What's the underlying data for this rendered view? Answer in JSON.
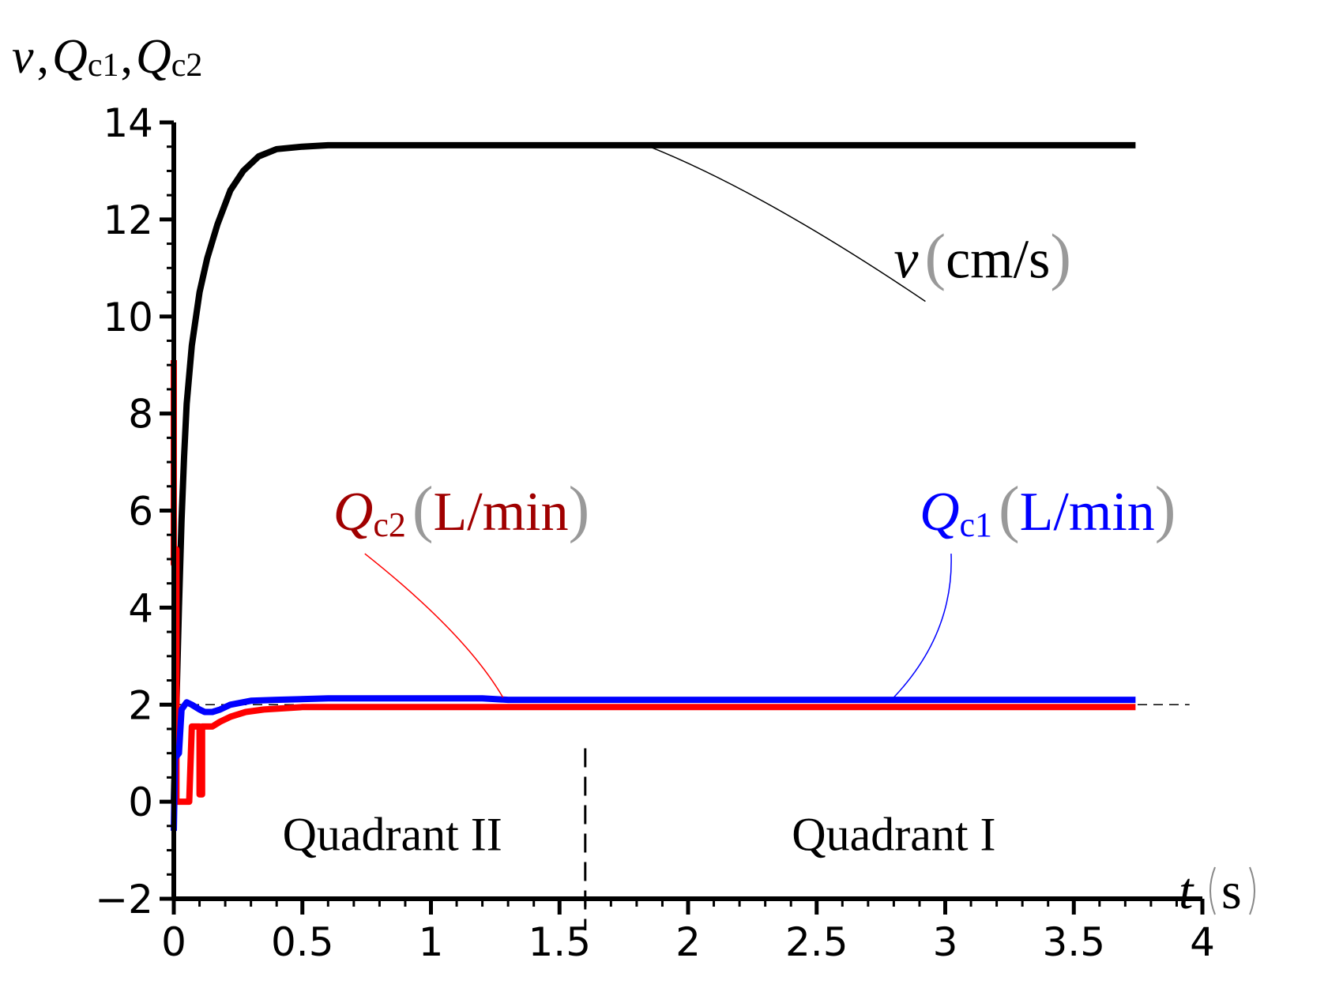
{
  "chart_data": {
    "type": "line",
    "xlim": [
      0,
      4
    ],
    "ylim": [
      -2,
      14
    ],
    "x_ticks": [
      "0",
      "0.5",
      "1",
      "1.5",
      "2",
      "2.5",
      "3",
      "3.5",
      "4"
    ],
    "y_ticks": [
      "-2",
      "0",
      "2",
      "4",
      "6",
      "8",
      "10",
      "12",
      "14"
    ],
    "y_axis_label": {
      "v": "v",
      "sep1": ",",
      "q1": "Q",
      "q1_sub": "c1",
      "sep2": ",",
      "q2": "Q",
      "q2_sub": "c2"
    },
    "x_axis_label": {
      "sym": "t",
      "unit": "s"
    },
    "reference_line_y": 2,
    "phase_boundary_x": 1.6,
    "region_labels": [
      {
        "text": "Quadrant II",
        "x": 0.85,
        "y": -1.0
      },
      {
        "text": "Quadrant I",
        "x": 2.8,
        "y": -1.0
      }
    ],
    "series": [
      {
        "label_sym": "v",
        "label_sub": "",
        "label_unit": "cm/s",
        "color": "#000000",
        "label_at": {
          "x": 2.8,
          "y": 10.8
        },
        "anchor": {
          "x": 1.85,
          "y": 13.5
        },
        "points": [
          [
            0,
            0
          ],
          [
            0.01,
            2
          ],
          [
            0.02,
            4
          ],
          [
            0.03,
            5.8
          ],
          [
            0.04,
            7.1
          ],
          [
            0.05,
            8.2
          ],
          [
            0.07,
            9.4
          ],
          [
            0.1,
            10.5
          ],
          [
            0.13,
            11.2
          ],
          [
            0.17,
            11.9
          ],
          [
            0.22,
            12.6
          ],
          [
            0.27,
            13.0
          ],
          [
            0.33,
            13.3
          ],
          [
            0.4,
            13.45
          ],
          [
            0.5,
            13.5
          ],
          [
            0.6,
            13.53
          ],
          [
            3.74,
            13.53
          ]
        ]
      },
      {
        "label_sym": "Q",
        "label_sub": "c2",
        "label_unit": "L/min",
        "color": "#ff0000",
        "label_color": "#a00000",
        "label_at": {
          "x": 0.62,
          "y": 5.6
        },
        "anchor": {
          "x": 1.28,
          "y": 2.15
        },
        "points": [
          [
            0,
            9.1
          ],
          [
            0,
            4.9
          ],
          [
            0.01,
            5.2
          ],
          [
            0.01,
            0
          ],
          [
            0.06,
            0
          ],
          [
            0.07,
            1.55
          ],
          [
            0.1,
            1.55
          ],
          [
            0.1,
            0.15
          ],
          [
            0.11,
            0.15
          ],
          [
            0.11,
            1.55
          ],
          [
            0.15,
            1.55
          ],
          [
            0.18,
            1.65
          ],
          [
            0.22,
            1.75
          ],
          [
            0.28,
            1.85
          ],
          [
            0.35,
            1.9
          ],
          [
            0.5,
            1.95
          ],
          [
            1.0,
            1.95
          ],
          [
            3.74,
            1.95
          ]
        ]
      },
      {
        "label_sym": "Q",
        "label_sub": "c1",
        "label_unit": "L/min",
        "color": "#0000ff",
        "label_color": "#0000ff",
        "label_at": {
          "x": 2.9,
          "y": 5.6
        },
        "anchor": {
          "x": 2.8,
          "y": 2.15
        },
        "points": [
          [
            0,
            -0.6
          ],
          [
            0.005,
            0.9
          ],
          [
            0.02,
            1.0
          ],
          [
            0.03,
            1.9
          ],
          [
            0.05,
            2.05
          ],
          [
            0.07,
            2.0
          ],
          [
            0.1,
            1.9
          ],
          [
            0.12,
            1.85
          ],
          [
            0.15,
            1.85
          ],
          [
            0.18,
            1.9
          ],
          [
            0.22,
            2.0
          ],
          [
            0.3,
            2.08
          ],
          [
            0.4,
            2.1
          ],
          [
            0.6,
            2.13
          ],
          [
            1.2,
            2.13
          ],
          [
            1.3,
            2.1
          ],
          [
            3.74,
            2.1
          ]
        ]
      }
    ]
  }
}
